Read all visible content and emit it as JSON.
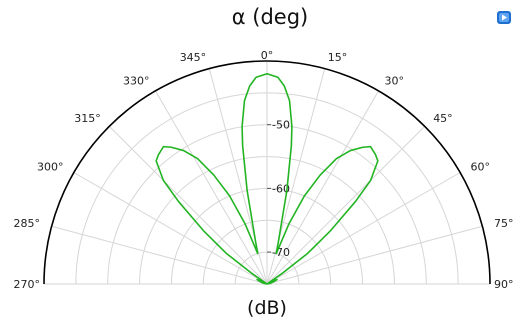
{
  "chart_data": {
    "type": "polar-line",
    "title": "α (deg)",
    "radial_unit_label": "(dB)",
    "angular_unit": "deg",
    "angle_range": [
      -90,
      90
    ],
    "angle_zero": "top",
    "angle_direction": "clockwise",
    "angular_ticks": [
      {
        "value": -90,
        "label": "270°"
      },
      {
        "value": -75,
        "label": "285°"
      },
      {
        "value": -60,
        "label": "300°"
      },
      {
        "value": -45,
        "label": "315°"
      },
      {
        "value": -30,
        "label": "330°"
      },
      {
        "value": -15,
        "label": "345°"
      },
      {
        "value": 0,
        "label": "0°"
      },
      {
        "value": 15,
        "label": "15°"
      },
      {
        "value": 30,
        "label": "30°"
      },
      {
        "value": 45,
        "label": "45°"
      },
      {
        "value": 60,
        "label": "60°"
      },
      {
        "value": 75,
        "label": "75°"
      },
      {
        "value": 90,
        "label": "90°"
      }
    ],
    "radial_range": [
      -75,
      -40
    ],
    "radial_ticks": [
      {
        "value": -50,
        "label": "-50"
      },
      {
        "value": -60,
        "label": "-60"
      },
      {
        "value": -70,
        "label": "-70"
      }
    ],
    "grid": true,
    "series": [
      {
        "color": "#22b422",
        "points": [
          [
            -90,
            -75
          ],
          [
            -80,
            -74.5
          ],
          [
            -70,
            -73.8
          ],
          [
            -66,
            -73.3
          ],
          [
            -63,
            -73.8
          ],
          [
            -58,
            -75
          ],
          [
            -55,
            -72
          ],
          [
            -53,
            -67
          ],
          [
            -50,
            -62
          ],
          [
            -47,
            -56
          ],
          [
            -45,
            -52
          ],
          [
            -42,
            -49
          ],
          [
            -40,
            -48.5
          ],
          [
            -37,
            -48
          ],
          [
            -35,
            -48.8
          ],
          [
            -32,
            -50.3
          ],
          [
            -29,
            -52.5
          ],
          [
            -26,
            -56
          ],
          [
            -23,
            -60
          ],
          [
            -20,
            -65
          ],
          [
            -17,
            -70
          ],
          [
            -15,
            -68
          ],
          [
            -12,
            -60
          ],
          [
            -10,
            -53
          ],
          [
            -9,
            -50
          ],
          [
            -7,
            -46
          ],
          [
            -5,
            -43.8
          ],
          [
            -3,
            -42.5
          ],
          [
            0,
            -42
          ],
          [
            3,
            -42.5
          ],
          [
            5,
            -43.8
          ],
          [
            7,
            -46
          ],
          [
            9,
            -50
          ],
          [
            10,
            -53
          ],
          [
            12,
            -60
          ],
          [
            15,
            -68
          ],
          [
            17,
            -70
          ],
          [
            20,
            -65
          ],
          [
            23,
            -60
          ],
          [
            26,
            -56
          ],
          [
            29,
            -52.5
          ],
          [
            32,
            -50.3
          ],
          [
            35,
            -48.8
          ],
          [
            37,
            -48
          ],
          [
            40,
            -48.5
          ],
          [
            42,
            -49
          ],
          [
            45,
            -52
          ],
          [
            47,
            -56
          ],
          [
            50,
            -62
          ],
          [
            53,
            -67
          ],
          [
            55,
            -72
          ],
          [
            58,
            -75
          ],
          [
            63,
            -73.8
          ],
          [
            66,
            -73.3
          ],
          [
            70,
            -73.8
          ],
          [
            80,
            -74.5
          ],
          [
            90,
            -75
          ]
        ]
      }
    ],
    "colors": {
      "curve": "#22b422",
      "grid": "#d6d6d6",
      "outer_arc": "#000000",
      "corner_icon": "#1e6fd0"
    },
    "corner_icon": "comsol-logo-icon"
  }
}
